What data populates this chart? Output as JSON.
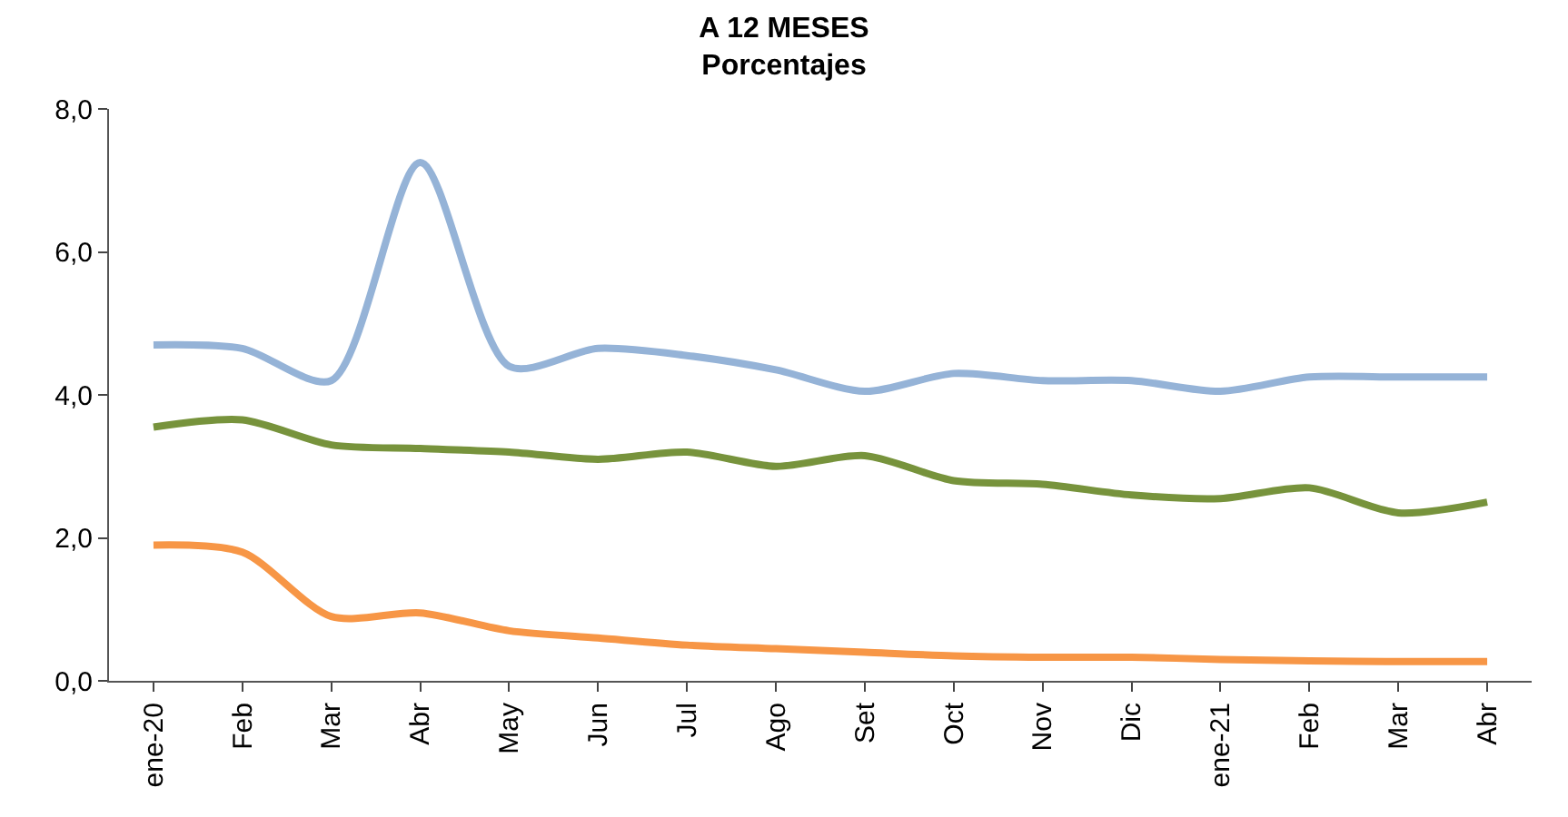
{
  "chart_data": {
    "type": "line",
    "title": "A 12 MESES",
    "subtitle": "Porcentajes",
    "categories": [
      "ene-20",
      "Feb",
      "Mar",
      "Abr",
      "May",
      "Jun",
      "Jul",
      "Ago",
      "Set",
      "Oct",
      "Nov",
      "Dic",
      "ene-21",
      "Feb",
      "Mar",
      "Abr"
    ],
    "series": [
      {
        "color": "#95b3d7",
        "values": [
          4.7,
          4.65,
          4.2,
          7.25,
          4.4,
          4.65,
          4.55,
          4.35,
          4.05,
          4.3,
          4.2,
          4.2,
          4.05,
          4.25,
          4.25,
          4.25
        ]
      },
      {
        "color": "#77933c",
        "values": [
          3.55,
          3.65,
          3.3,
          3.25,
          3.2,
          3.1,
          3.2,
          3.0,
          3.15,
          2.8,
          2.75,
          2.6,
          2.55,
          2.7,
          2.35,
          2.5
        ]
      },
      {
        "color": "#f79646",
        "values": [
          1.9,
          1.8,
          0.9,
          0.95,
          0.7,
          0.6,
          0.5,
          0.45,
          0.4,
          0.35,
          0.33,
          0.33,
          0.3,
          0.28,
          0.27,
          0.27
        ]
      }
    ],
    "ylim": [
      0,
      8
    ],
    "yticks": [
      {
        "value": 0,
        "label": "0,0"
      },
      {
        "value": 2,
        "label": "2,0"
      },
      {
        "value": 4,
        "label": "4,0"
      },
      {
        "value": 6,
        "label": "6,0"
      },
      {
        "value": 8,
        "label": "8,0"
      }
    ],
    "marker": "none",
    "line_style": "solid"
  }
}
